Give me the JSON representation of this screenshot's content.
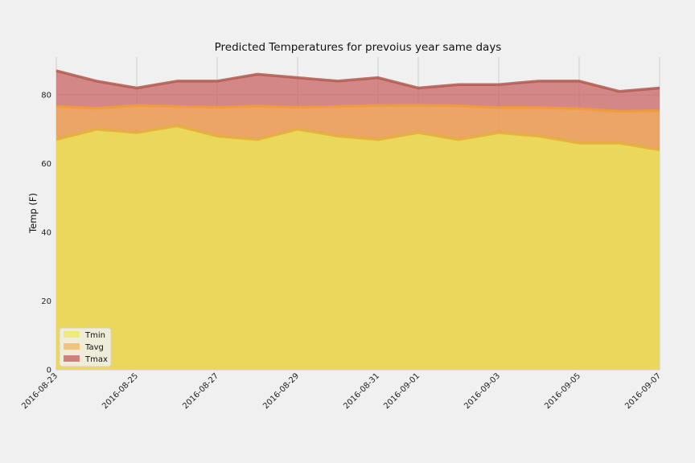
{
  "chart_data": {
    "type": "area",
    "title": "Predicted Temperatures for prevoius year same days",
    "xlabel": "",
    "ylabel": "Temp (F)",
    "ylim": [
      0,
      91
    ],
    "yticks": [
      0,
      20,
      40,
      60,
      80
    ],
    "x": [
      "2016-08-23",
      "2016-08-24",
      "2016-08-25",
      "2016-08-26",
      "2016-08-27",
      "2016-08-28",
      "2016-08-29",
      "2016-08-30",
      "2016-08-31",
      "2016-09-01",
      "2016-09-02",
      "2016-09-03",
      "2016-09-04",
      "2016-09-05",
      "2016-09-06",
      "2016-09-07"
    ],
    "xtick_labels": [
      "2016-08-23",
      "2016-08-25",
      "2016-08-27",
      "2016-08-29",
      "2016-08-31",
      "2016-09-01",
      "2016-09-03",
      "2016-09-05",
      "2016-09-07"
    ],
    "stacked": false,
    "grid": true,
    "legend_position": "bottom-left",
    "series": [
      {
        "name": "Tmin",
        "color": "#e5ae38",
        "fill": "#ecec5a",
        "values": [
          67,
          70,
          69,
          71,
          68,
          67,
          70,
          68,
          67,
          69,
          67,
          69,
          68,
          66,
          66,
          64
        ]
      },
      {
        "name": "Tavg",
        "color": "#f29a3a",
        "fill": "#f5b45a",
        "values": [
          76.7,
          76.1,
          76.9,
          76.6,
          76.4,
          76.7,
          76.4,
          76.6,
          76.9,
          77.0,
          76.8,
          76.3,
          76.3,
          76.0,
          75.2,
          75.4
        ]
      },
      {
        "name": "Tmax",
        "color": "#b25a50",
        "fill": "#c85a5a",
        "values": [
          87,
          84,
          82,
          84,
          84,
          86,
          85,
          84,
          85,
          82,
          83,
          83,
          84,
          84,
          81,
          82
        ]
      }
    ]
  }
}
